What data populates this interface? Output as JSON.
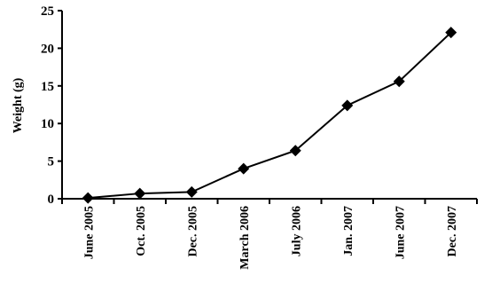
{
  "chart_data": {
    "type": "line",
    "title": "",
    "xlabel": "",
    "ylabel": "Weight (g)",
    "categories": [
      "June 2005",
      "Oct. 2005",
      "Dec. 2005",
      "March 2006",
      "July 2006",
      "Jan. 2007",
      "June 2007",
      "Dec. 2007"
    ],
    "series": [
      {
        "values": [
          0.1,
          0.7,
          0.9,
          4.0,
          6.4,
          12.4,
          15.6,
          22.1
        ],
        "color": "#000000",
        "marker": "diamond"
      }
    ],
    "ylim": [
      0,
      25
    ],
    "yticks": [
      0,
      5,
      10,
      15,
      20,
      25
    ],
    "grid": false,
    "legend": "none"
  }
}
